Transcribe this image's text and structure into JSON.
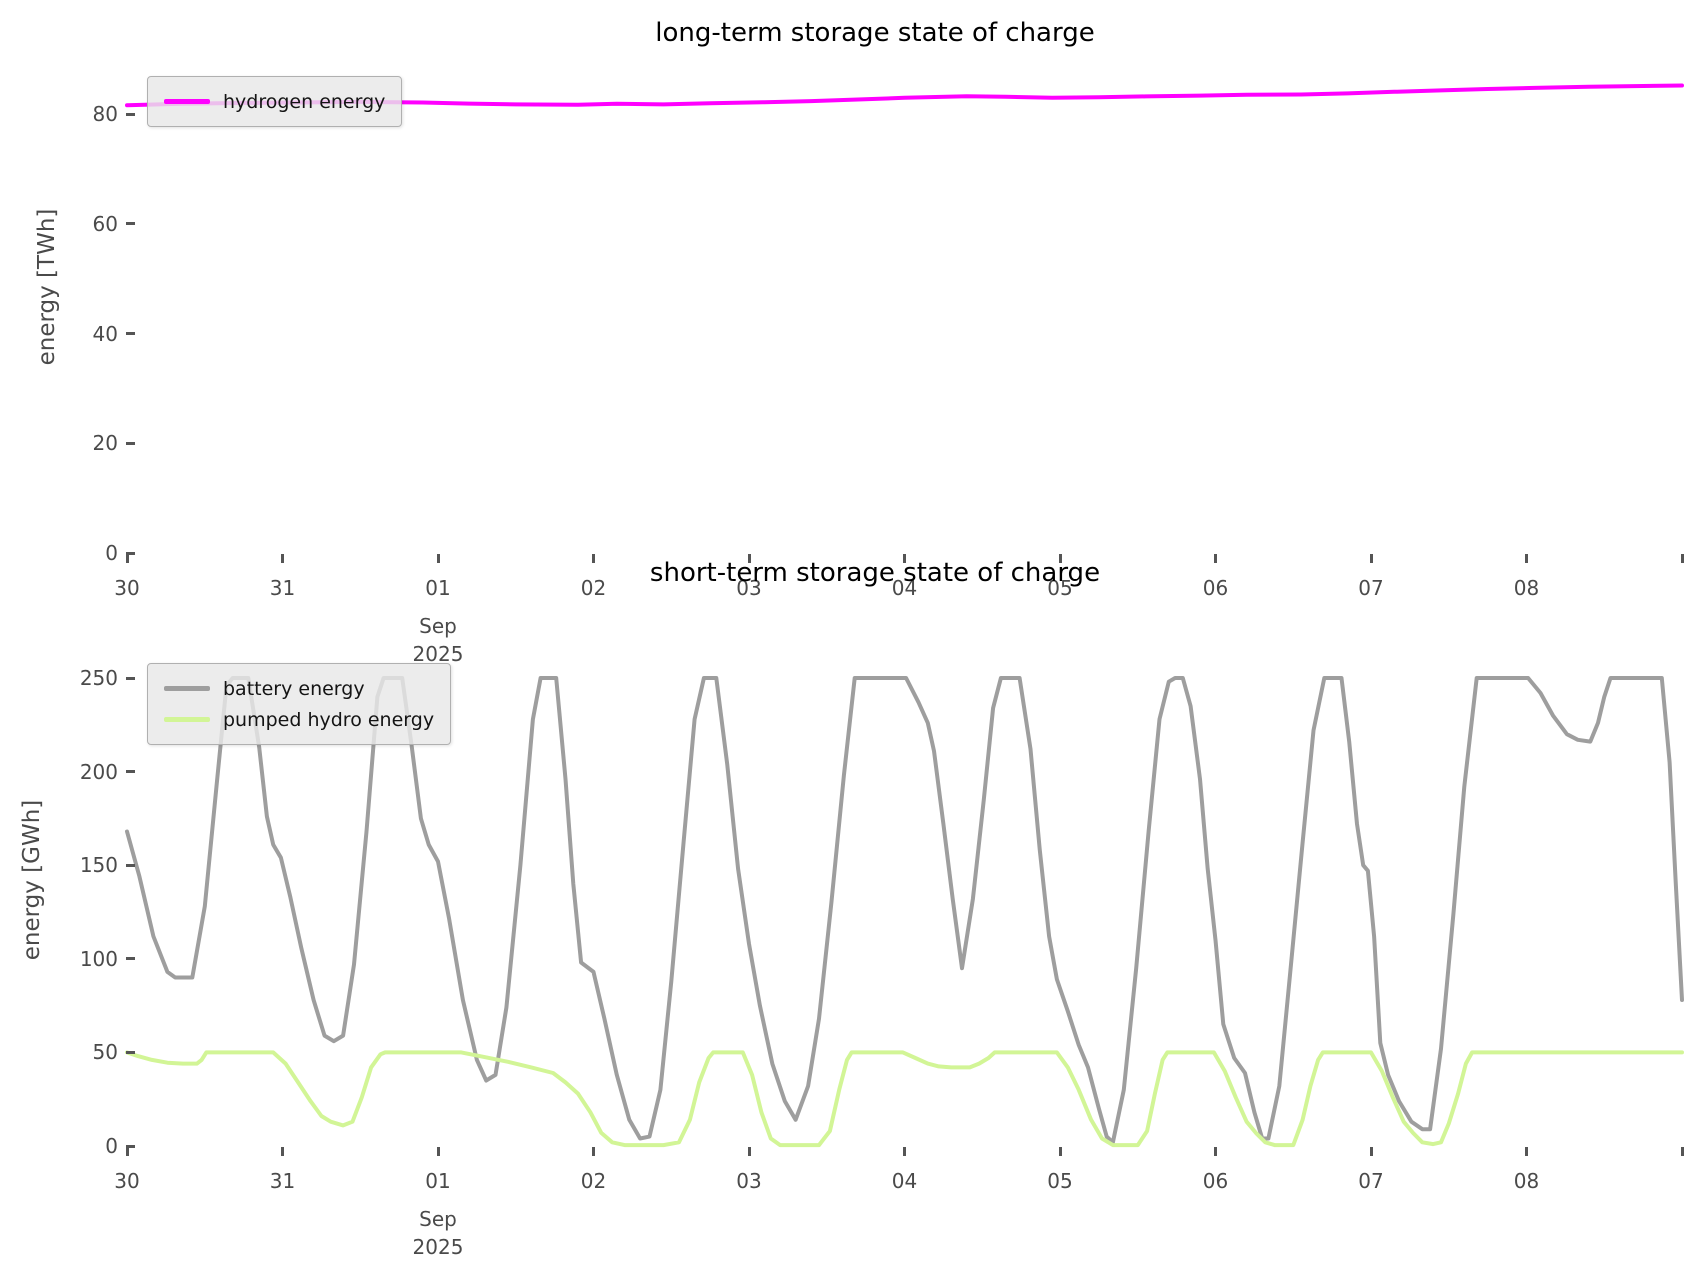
{
  "figure": {
    "background": "#ffffff"
  },
  "chart_data": [
    {
      "type": "line",
      "title": "long-term storage state of charge",
      "ylabel": "energy [TWh]",
      "grid": false,
      "legend_position": "upper left",
      "xlim": [
        0,
        10
      ],
      "ylim": [
        0,
        90
      ],
      "yticks": [
        0,
        20,
        40,
        60,
        80
      ],
      "x_axis": {
        "tick_labels": [
          "30",
          "31",
          "01",
          "02",
          "03",
          "04",
          "05",
          "06",
          "07",
          "08"
        ],
        "month_label": "Sep",
        "year_label": "2025",
        "month_tick_index": 2,
        "unit": "days since Aug 30 2025, ticks are calendar days Aug 30 - Sep 08"
      },
      "series": [
        {
          "name": "hydrogen energy",
          "color": "#ff00ff",
          "points": [
            [
              0,
              81.6
            ],
            [
              0.35,
              81.85
            ],
            [
              0.7,
              82.0
            ],
            [
              1.1,
              82.1
            ],
            [
              1.5,
              82.2
            ],
            [
              1.9,
              82.1
            ],
            [
              2.2,
              81.9
            ],
            [
              2.5,
              81.75
            ],
            [
              2.9,
              81.7
            ],
            [
              3.15,
              81.85
            ],
            [
              3.45,
              81.75
            ],
            [
              3.75,
              81.95
            ],
            [
              4.1,
              82.15
            ],
            [
              4.4,
              82.35
            ],
            [
              4.7,
              82.65
            ],
            [
              5.0,
              82.95
            ],
            [
              5.2,
              83.1
            ],
            [
              5.4,
              83.25
            ],
            [
              5.65,
              83.15
            ],
            [
              5.95,
              82.95
            ],
            [
              6.25,
              83.05
            ],
            [
              6.55,
              83.2
            ],
            [
              6.9,
              83.35
            ],
            [
              7.2,
              83.5
            ],
            [
              7.55,
              83.55
            ],
            [
              7.85,
              83.75
            ],
            [
              8.15,
              84.05
            ],
            [
              8.45,
              84.3
            ],
            [
              8.75,
              84.55
            ],
            [
              9.05,
              84.75
            ],
            [
              9.4,
              84.95
            ],
            [
              9.75,
              85.1
            ],
            [
              10,
              85.2
            ]
          ]
        }
      ]
    },
    {
      "type": "line",
      "title": "short-term storage state of charge",
      "ylabel": "energy [GWh]",
      "grid": false,
      "legend_position": "upper left",
      "xlim": [
        0,
        10
      ],
      "ylim": [
        0,
        285
      ],
      "yticks": [
        0,
        50,
        100,
        150,
        200,
        250
      ],
      "x_axis": {
        "tick_labels": [
          "30",
          "31",
          "01",
          "02",
          "03",
          "04",
          "05",
          "06",
          "07",
          "08"
        ],
        "month_label": "Sep",
        "year_label": "2025",
        "month_tick_index": 2,
        "unit": "days since Aug 30 2025, ticks are calendar days Aug 30 - Sep 08"
      },
      "series": [
        {
          "name": "battery energy",
          "color": "#9e9e9e",
          "points": [
            [
              0,
              168
            ],
            [
              0.08,
              144
            ],
            [
              0.17,
              112
            ],
            [
              0.26,
              93
            ],
            [
              0.31,
              90
            ],
            [
              0.42,
              90
            ],
            [
              0.5,
              128
            ],
            [
              0.58,
              196
            ],
            [
              0.64,
              246
            ],
            [
              0.68,
              250
            ],
            [
              0.78,
              250
            ],
            [
              0.85,
              213
            ],
            [
              0.9,
              176
            ],
            [
              0.94,
              161
            ],
            [
              0.99,
              154
            ],
            [
              1.05,
              133
            ],
            [
              1.12,
              106
            ],
            [
              1.2,
              78
            ],
            [
              1.27,
              59
            ],
            [
              1.33,
              56
            ],
            [
              1.39,
              59
            ],
            [
              1.46,
              97
            ],
            [
              1.54,
              168
            ],
            [
              1.61,
              240
            ],
            [
              1.65,
              250
            ],
            [
              1.77,
              250
            ],
            [
              1.83,
              214
            ],
            [
              1.89,
              175
            ],
            [
              1.94,
              161
            ],
            [
              2.0,
              152
            ],
            [
              2.07,
              122
            ],
            [
              2.16,
              78
            ],
            [
              2.25,
              46
            ],
            [
              2.31,
              35
            ],
            [
              2.37,
              38
            ],
            [
              2.44,
              74
            ],
            [
              2.53,
              150
            ],
            [
              2.61,
              228
            ],
            [
              2.66,
              250
            ],
            [
              2.76,
              250
            ],
            [
              2.82,
              196
            ],
            [
              2.87,
              140
            ],
            [
              2.92,
              98
            ],
            [
              3.0,
              93
            ],
            [
              3.07,
              68
            ],
            [
              3.15,
              38
            ],
            [
              3.23,
              14
            ],
            [
              3.3,
              4
            ],
            [
              3.36,
              5
            ],
            [
              3.43,
              30
            ],
            [
              3.5,
              88
            ],
            [
              3.58,
              163
            ],
            [
              3.65,
              228
            ],
            [
              3.71,
              250
            ],
            [
              3.79,
              250
            ],
            [
              3.86,
              204
            ],
            [
              3.93,
              148
            ],
            [
              4.0,
              108
            ],
            [
              4.07,
              75
            ],
            [
              4.15,
              44
            ],
            [
              4.23,
              24
            ],
            [
              4.3,
              14
            ],
            [
              4.38,
              32
            ],
            [
              4.45,
              68
            ],
            [
              4.53,
              130
            ],
            [
              4.61,
              198
            ],
            [
              4.68,
              250
            ],
            [
              5.01,
              250
            ],
            [
              5.09,
              237
            ],
            [
              5.15,
              226
            ],
            [
              5.19,
              211
            ],
            [
              5.25,
              172
            ],
            [
              5.31,
              132
            ],
            [
              5.37,
              95
            ],
            [
              5.44,
              132
            ],
            [
              5.51,
              185
            ],
            [
              5.57,
              234
            ],
            [
              5.62,
              250
            ],
            [
              5.74,
              250
            ],
            [
              5.81,
              212
            ],
            [
              5.87,
              158
            ],
            [
              5.93,
              112
            ],
            [
              5.98,
              89
            ],
            [
              6.05,
              72
            ],
            [
              6.12,
              54
            ],
            [
              6.18,
              42
            ],
            [
              6.25,
              20
            ],
            [
              6.3,
              5
            ],
            [
              6.34,
              2
            ],
            [
              6.41,
              30
            ],
            [
              6.49,
              95
            ],
            [
              6.57,
              168
            ],
            [
              6.64,
              228
            ],
            [
              6.7,
              248
            ],
            [
              6.74,
              250
            ],
            [
              6.79,
              250
            ],
            [
              6.84,
              235
            ],
            [
              6.9,
              196
            ],
            [
              6.95,
              148
            ],
            [
              7.0,
              110
            ],
            [
              7.05,
              65
            ],
            [
              7.12,
              47
            ],
            [
              7.19,
              39
            ],
            [
              7.25,
              18
            ],
            [
              7.3,
              4
            ],
            [
              7.34,
              4
            ],
            [
              7.41,
              32
            ],
            [
              7.48,
              92
            ],
            [
              7.56,
              162
            ],
            [
              7.63,
              222
            ],
            [
              7.7,
              250
            ],
            [
              7.81,
              250
            ],
            [
              7.86,
              216
            ],
            [
              7.91,
              172
            ],
            [
              7.95,
              150
            ],
            [
              7.98,
              147
            ],
            [
              8.02,
              112
            ],
            [
              8.06,
              55
            ],
            [
              8.11,
              38
            ],
            [
              8.18,
              24
            ],
            [
              8.26,
              13
            ],
            [
              8.33,
              9
            ],
            [
              8.38,
              9
            ],
            [
              8.45,
              52
            ],
            [
              8.53,
              124
            ],
            [
              8.6,
              192
            ],
            [
              8.68,
              250
            ],
            [
              9.01,
              250
            ],
            [
              9.09,
              242
            ],
            [
              9.17,
              230
            ],
            [
              9.26,
              220
            ],
            [
              9.33,
              217
            ],
            [
              9.41,
              216
            ],
            [
              9.46,
              226
            ],
            [
              9.5,
              240
            ],
            [
              9.54,
              250
            ],
            [
              9.87,
              250
            ],
            [
              9.92,
              205
            ],
            [
              9.96,
              140
            ],
            [
              10,
              78
            ]
          ]
        },
        {
          "name": "pumped hydro energy",
          "color": "#d2f596",
          "points": [
            [
              0,
              50
            ],
            [
              0.07,
              48
            ],
            [
              0.16,
              46
            ],
            [
              0.26,
              44.5
            ],
            [
              0.36,
              44
            ],
            [
              0.45,
              44
            ],
            [
              0.48,
              46
            ],
            [
              0.51,
              50
            ],
            [
              0.94,
              50
            ],
            [
              1.02,
              44
            ],
            [
              1.1,
              34
            ],
            [
              1.18,
              24
            ],
            [
              1.25,
              16
            ],
            [
              1.31,
              13
            ],
            [
              1.39,
              11
            ],
            [
              1.45,
              13
            ],
            [
              1.51,
              26
            ],
            [
              1.57,
              42
            ],
            [
              1.63,
              49
            ],
            [
              1.66,
              50
            ],
            [
              2.15,
              50
            ],
            [
              2.3,
              47.5
            ],
            [
              2.45,
              45
            ],
            [
              2.6,
              42
            ],
            [
              2.74,
              39
            ],
            [
              2.82,
              34
            ],
            [
              2.9,
              28
            ],
            [
              2.98,
              18
            ],
            [
              3.05,
              7
            ],
            [
              3.12,
              2
            ],
            [
              3.2,
              0.5
            ],
            [
              3.45,
              0.5
            ],
            [
              3.55,
              2
            ],
            [
              3.62,
              14
            ],
            [
              3.68,
              34
            ],
            [
              3.74,
              47
            ],
            [
              3.77,
              50
            ],
            [
              3.96,
              50
            ],
            [
              4.02,
              38
            ],
            [
              4.08,
              18
            ],
            [
              4.14,
              4
            ],
            [
              4.2,
              0.5
            ],
            [
              4.45,
              0.5
            ],
            [
              4.52,
              8
            ],
            [
              4.58,
              30
            ],
            [
              4.63,
              46
            ],
            [
              4.66,
              50
            ],
            [
              4.99,
              50
            ],
            [
              5.07,
              47
            ],
            [
              5.15,
              44
            ],
            [
              5.22,
              42.5
            ],
            [
              5.3,
              42
            ],
            [
              5.42,
              42
            ],
            [
              5.48,
              44
            ],
            [
              5.54,
              47
            ],
            [
              5.58,
              50
            ],
            [
              5.98,
              50
            ],
            [
              6.05,
              42
            ],
            [
              6.12,
              30
            ],
            [
              6.2,
              14
            ],
            [
              6.27,
              4
            ],
            [
              6.34,
              0.5
            ],
            [
              6.5,
              0.5
            ],
            [
              6.56,
              8
            ],
            [
              6.61,
              28
            ],
            [
              6.66,
              46
            ],
            [
              6.69,
              50
            ],
            [
              6.99,
              50
            ],
            [
              7.06,
              40
            ],
            [
              7.13,
              26
            ],
            [
              7.2,
              13
            ],
            [
              7.26,
              7
            ],
            [
              7.32,
              2
            ],
            [
              7.38,
              0.5
            ],
            [
              7.5,
              0.5
            ],
            [
              7.56,
              14
            ],
            [
              7.61,
              32
            ],
            [
              7.66,
              46
            ],
            [
              7.69,
              50
            ],
            [
              8.0,
              50
            ],
            [
              8.07,
              40
            ],
            [
              8.14,
              26
            ],
            [
              8.21,
              13
            ],
            [
              8.27,
              7
            ],
            [
              8.33,
              2
            ],
            [
              8.4,
              1
            ],
            [
              8.45,
              2
            ],
            [
              8.5,
              12
            ],
            [
              8.56,
              28
            ],
            [
              8.61,
              44
            ],
            [
              8.65,
              50
            ],
            [
              10,
              50
            ]
          ]
        }
      ]
    }
  ]
}
